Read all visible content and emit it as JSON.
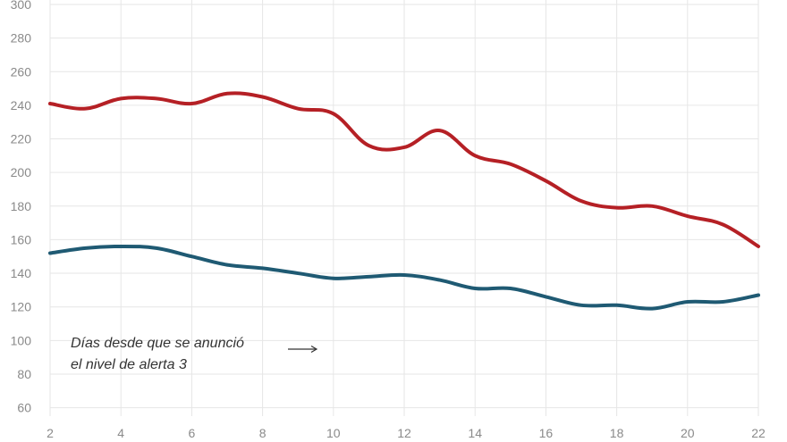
{
  "chart_data": {
    "type": "line",
    "title": "",
    "xlabel": "",
    "ylabel": "",
    "x": [
      2,
      3,
      4,
      5,
      6,
      7,
      8,
      9,
      10,
      11,
      12,
      13,
      14,
      15,
      16,
      17,
      18,
      19,
      20,
      21,
      22
    ],
    "xlim": [
      2,
      22
    ],
    "ylim": [
      55,
      300
    ],
    "x_ticks": [
      "2",
      "4",
      "6",
      "8",
      "10",
      "12",
      "14",
      "16",
      "18",
      "20",
      "22"
    ],
    "y_ticks": [
      "60",
      "80",
      "100",
      "120",
      "140",
      "160",
      "180",
      "200",
      "220",
      "240",
      "260",
      "280",
      "300"
    ],
    "grid": true,
    "series": [
      {
        "color": "#b52025",
        "values": [
          241,
          238,
          244,
          244,
          241,
          247,
          245,
          238,
          235,
          216,
          215,
          225,
          210,
          205,
          195,
          183,
          179,
          180,
          174,
          169,
          156
        ]
      },
      {
        "color": "#1f5a73",
        "values": [
          152,
          155,
          156,
          155,
          150,
          145,
          143,
          140,
          137,
          138,
          139,
          136,
          131,
          131,
          126,
          121,
          121,
          119,
          123,
          123,
          127
        ]
      }
    ],
    "annotation": {
      "lines": [
        "Días desde que se anunció",
        "el nivel de alerta 3"
      ],
      "arrow": "→"
    }
  }
}
